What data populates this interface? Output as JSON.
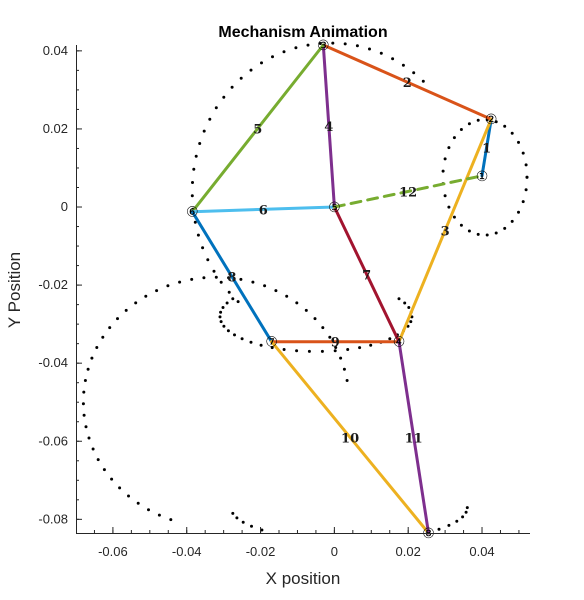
{
  "chart_data": {
    "type": "scatter",
    "title": "Mechanism Animation",
    "xlabel": "X position",
    "ylabel": "Y Position",
    "xlim": [
      -0.07,
      0.053
    ],
    "ylim": [
      -0.0835,
      0.0415
    ],
    "xticks": [
      -0.06,
      -0.04,
      -0.02,
      0,
      0.02,
      0.04
    ],
    "xtick_labels": [
      "-0.06",
      "-0.04",
      "-0.02",
      "0",
      "0.02",
      "0.04"
    ],
    "yticks": [
      0.04,
      0.02,
      0,
      -0.02,
      -0.04,
      -0.06,
      -0.08
    ],
    "ytick_labels": [
      "0.04",
      "0.02",
      "0",
      "-0.02",
      "-0.04",
      "-0.06",
      "-0.08"
    ],
    "grid": false,
    "joints": [
      {
        "id": "1",
        "label": "①",
        "x": 0.04,
        "y": 0.008
      },
      {
        "id": "2",
        "label": "②",
        "x": 0.0425,
        "y": 0.0225
      },
      {
        "id": "3",
        "label": "③",
        "x": -0.003,
        "y": 0.0415
      },
      {
        "id": "4",
        "label": "④",
        "x": 0.0175,
        "y": -0.0345
      },
      {
        "id": "5",
        "label": "⑤",
        "x": 0.0,
        "y": 0.0
      },
      {
        "id": "6",
        "label": "⑥",
        "x": -0.0385,
        "y": -0.0012
      },
      {
        "id": "7",
        "label": "⑦",
        "x": -0.017,
        "y": -0.0345
      },
      {
        "id": "8",
        "label": "⑧",
        "x": 0.0255,
        "y": -0.0835
      }
    ],
    "links": [
      {
        "label": "1",
        "from": "1",
        "to": "2",
        "color": "#0072BD",
        "dashed": false
      },
      {
        "label": "2",
        "from": "2",
        "to": "3",
        "color": "#D95319",
        "dashed": false
      },
      {
        "label": "3",
        "from": "2",
        "to": "4",
        "color": "#EDB120",
        "dashed": false
      },
      {
        "label": "4",
        "from": "3",
        "to": "5",
        "color": "#7E2F8E",
        "dashed": false
      },
      {
        "label": "5",
        "from": "3",
        "to": "6",
        "color": "#77AC30",
        "dashed": false
      },
      {
        "label": "6",
        "from": "6",
        "to": "5",
        "color": "#4DBEEE",
        "dashed": false
      },
      {
        "label": "7",
        "from": "5",
        "to": "4",
        "color": "#A2142F",
        "dashed": false
      },
      {
        "label": "8",
        "from": "6",
        "to": "7",
        "color": "#0072BD",
        "dashed": false
      },
      {
        "label": "9",
        "from": "7",
        "to": "4",
        "color": "#D95319",
        "dashed": false
      },
      {
        "label": "10",
        "from": "7",
        "to": "8",
        "color": "#EDB120",
        "dashed": false
      },
      {
        "label": "11",
        "from": "4",
        "to": "8",
        "color": "#7E2F8E",
        "dashed": false
      },
      {
        "label": "12",
        "from": "5",
        "to": "1",
        "color": "#77AC30",
        "dashed": true
      }
    ],
    "paths": [
      {
        "name": "crank",
        "type": "ellipse",
        "cx": 0.0408,
        "cy": 0.0076,
        "rx": 0.0114,
        "ry": 0.0148,
        "n": 30,
        "from": 0.0,
        "to": 360.0
      },
      {
        "name": "coupler-top",
        "type": "ellipse",
        "cx": -0.001,
        "cy": 0.004,
        "rx": 0.0375,
        "ry": 0.038,
        "n": 36,
        "from": 48.0,
        "to": 228.0
      },
      {
        "name": "mid-loop",
        "type": "ellipse",
        "cx": -0.005,
        "cy": -0.028,
        "rx": 0.026,
        "ry": 0.009,
        "n": 32,
        "from": 150.0,
        "to": 390.0
      },
      {
        "name": "big-loop",
        "type": "ellipse",
        "cx": -0.032,
        "cy": -0.05,
        "rx": 0.036,
        "ry": 0.032,
        "n": 46,
        "from": 10.0,
        "to": 250.0
      },
      {
        "name": "bottom",
        "type": "ellipse",
        "cx": 0.004,
        "cy": -0.077,
        "rx": 0.032,
        "ry": 0.0085,
        "n": 22,
        "from": 190.0,
        "to": 360.0
      }
    ],
    "colors": {
      "points": "#000000",
      "axis": "#262626"
    }
  }
}
